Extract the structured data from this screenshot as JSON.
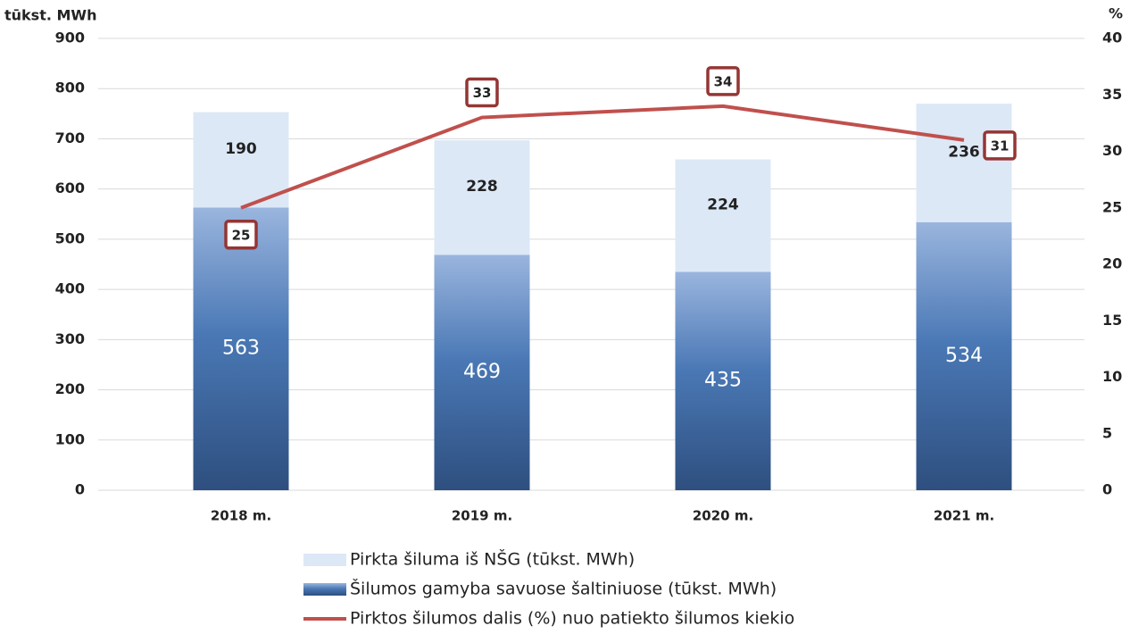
{
  "chart_data": {
    "type": "bar+line",
    "y_label": "tūkst. MWh",
    "y2_label": "%",
    "categories": [
      "2018 m.",
      "2019 m.",
      "2020 m.",
      "2021 m."
    ],
    "series": [
      {
        "name": "Šilumos gamyba savuose šaltiniuose (tūkst. MWh)",
        "color": "#4a78b5",
        "values": [
          563,
          469,
          435,
          534
        ]
      },
      {
        "name": "Pirkta šiluma iš NŠG (tūkst. MWh)",
        "color": "#dce8f6",
        "values": [
          190,
          228,
          224,
          236
        ]
      },
      {
        "name": "Pirktos šilumos dalis (%) nuo patiekto šilumos kiekio",
        "color": "#c0504d",
        "axis": "y2",
        "values": [
          25,
          33,
          34,
          31
        ]
      }
    ],
    "ylim": [
      0,
      900
    ],
    "yticks": [
      0,
      100,
      200,
      300,
      400,
      500,
      600,
      700,
      800,
      900
    ],
    "y2lim": [
      0,
      40
    ],
    "y2ticks": [
      0,
      5,
      10,
      15,
      20,
      25,
      30,
      35,
      40
    ],
    "grid": true
  }
}
